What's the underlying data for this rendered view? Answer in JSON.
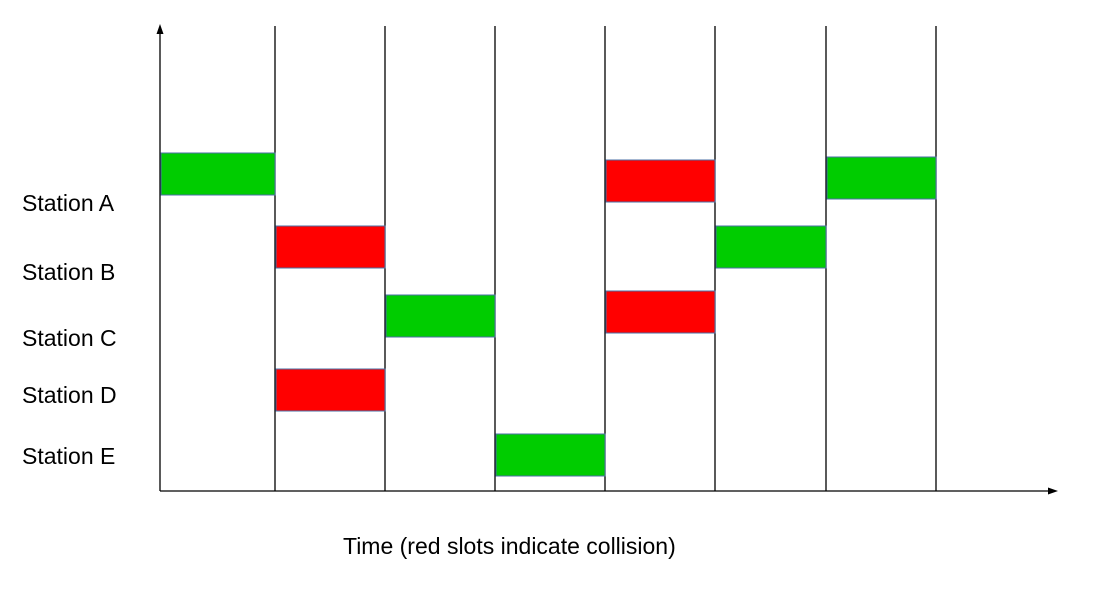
{
  "caption": "Time (red slots indicate collision)",
  "stations": [
    "Station A",
    "Station B",
    "Station C",
    "Station D",
    "Station E"
  ],
  "colors": {
    "success": "#00cc00",
    "collision": "#ff0000",
    "axis": "#000000",
    "slot_border": "#4a6fa5"
  },
  "slot_count": 7,
  "transmissions": [
    {
      "slot": 1,
      "station": "Station A",
      "status": "success"
    },
    {
      "slot": 2,
      "station": "Station B",
      "status": "collision"
    },
    {
      "slot": 2,
      "station": "Station D",
      "status": "collision"
    },
    {
      "slot": 3,
      "station": "Station C",
      "status": "success"
    },
    {
      "slot": 4,
      "station": "Station E",
      "status": "success"
    },
    {
      "slot": 5,
      "station": "Station A",
      "status": "collision"
    },
    {
      "slot": 5,
      "station": "Station C",
      "status": "collision"
    },
    {
      "slot": 6,
      "station": "Station B",
      "status": "success"
    },
    {
      "slot": 7,
      "station": "Station A",
      "status": "success"
    }
  ]
}
